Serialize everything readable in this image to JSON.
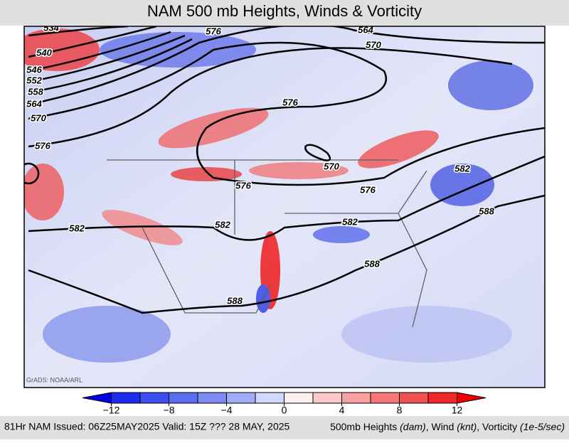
{
  "header": {
    "title": "NAM 500 mb Heights, Winds & Vorticity"
  },
  "map": {
    "credit": "GrADS: NOAA/ARL",
    "contour_labels": [
      534,
      540,
      546,
      552,
      558,
      564,
      570,
      576,
      576,
      564,
      570,
      576,
      570,
      576,
      576,
      582,
      588,
      582,
      582,
      582,
      588,
      588
    ]
  },
  "colorbar": {
    "min": -14,
    "max": 14,
    "ticks": [
      {
        "value": -12,
        "label": "−12"
      },
      {
        "value": -8,
        "label": "−8"
      },
      {
        "value": -4,
        "label": "−4"
      },
      0,
      4,
      8,
      12
    ],
    "colors": [
      "#0000e6",
      "#1e2cf0",
      "#3c50f0",
      "#5a6ef0",
      "#7c8cf2",
      "#a0acf5",
      "#d2d8fa",
      "#fff0f0",
      "#fcc8c8",
      "#f8a0a0",
      "#f47878",
      "#f05050",
      "#f02828",
      "#f00000"
    ]
  },
  "footer": {
    "left": "81Hr NAM Issued: 06Z25MAY2025 Valid: 15Z ??? 28 MAY, 2025",
    "right_parts": [
      "500mb Heights ",
      "(dam)",
      ", Wind ",
      "(knt)",
      ", Vorticity ",
      "(1e-5/sec)"
    ]
  }
}
